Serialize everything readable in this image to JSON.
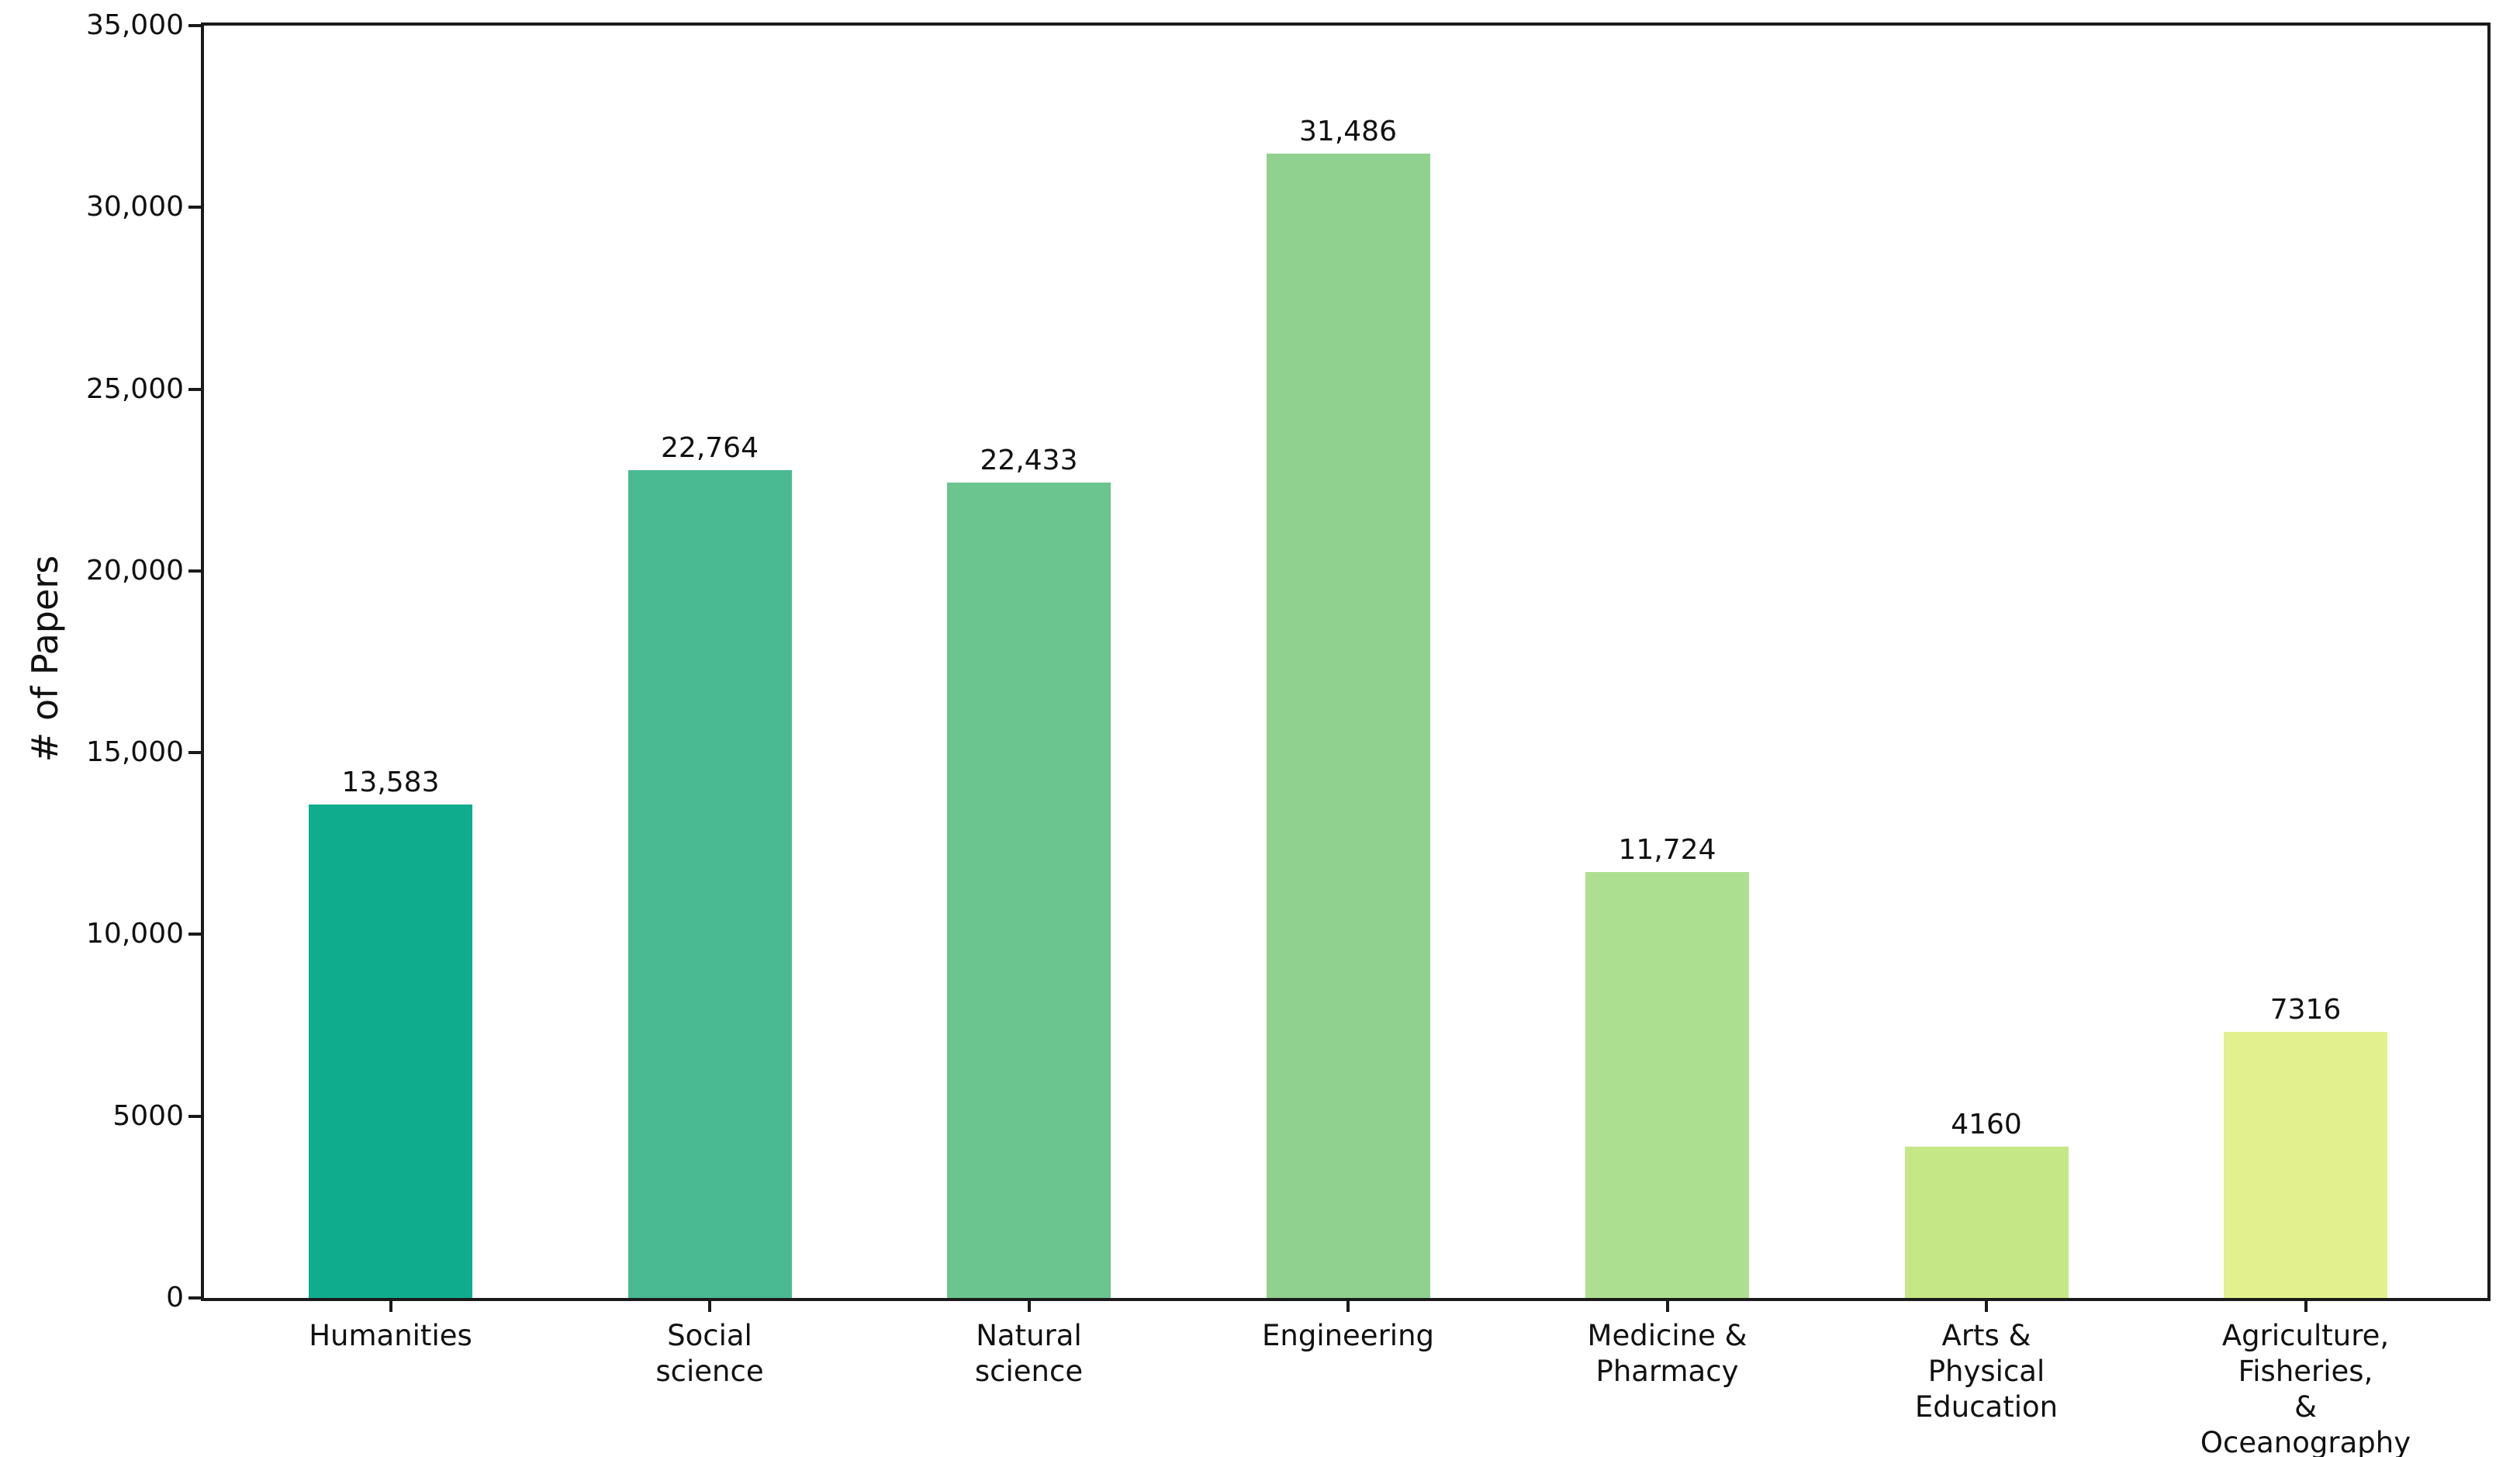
{
  "chart_data": {
    "type": "bar",
    "title": "",
    "xlabel": "",
    "ylabel": "# of Papers",
    "ylim": [
      0,
      35000
    ],
    "grid": false,
    "legend": "none",
    "background_color": "#ffffff",
    "axis_color": "#1a1a1a",
    "text_color": "#111111",
    "yticks": [
      {
        "value": 0,
        "label": "0"
      },
      {
        "value": 5000,
        "label": "5000"
      },
      {
        "value": 10000,
        "label": "10,000"
      },
      {
        "value": 15000,
        "label": "15,000"
      },
      {
        "value": 20000,
        "label": "20,000"
      },
      {
        "value": 25000,
        "label": "25,000"
      },
      {
        "value": 30000,
        "label": "30,000"
      },
      {
        "value": 35000,
        "label": "35,000"
      }
    ],
    "categories": [
      "Humanities",
      "Social science",
      "Natural science",
      "Engineering",
      "Medicine & Pharmacy",
      "Arts & Physical Education",
      "Agriculture, Fisheries, & Oceanography"
    ],
    "category_lines": [
      [
        "Humanities"
      ],
      [
        "Social",
        "science"
      ],
      [
        "Natural",
        "science"
      ],
      [
        "Engineering"
      ],
      [
        "Medicine &",
        "Pharmacy"
      ],
      [
        "Arts &",
        "Physical",
        "Education"
      ],
      [
        "Agriculture,",
        "Fisheries,",
        "&",
        "Oceanography"
      ]
    ],
    "values": [
      13583,
      22764,
      22433,
      31486,
      11724,
      4160,
      7316
    ],
    "value_labels": [
      "13,583",
      "22,764",
      "22,433",
      "31,486",
      "11,724",
      "4160",
      "7316"
    ],
    "bar_colors": [
      "#10ac8e",
      "#4aba92",
      "#6ac58e",
      "#90d18f",
      "#addf90",
      "#c6e785",
      "#e3f08e"
    ]
  }
}
